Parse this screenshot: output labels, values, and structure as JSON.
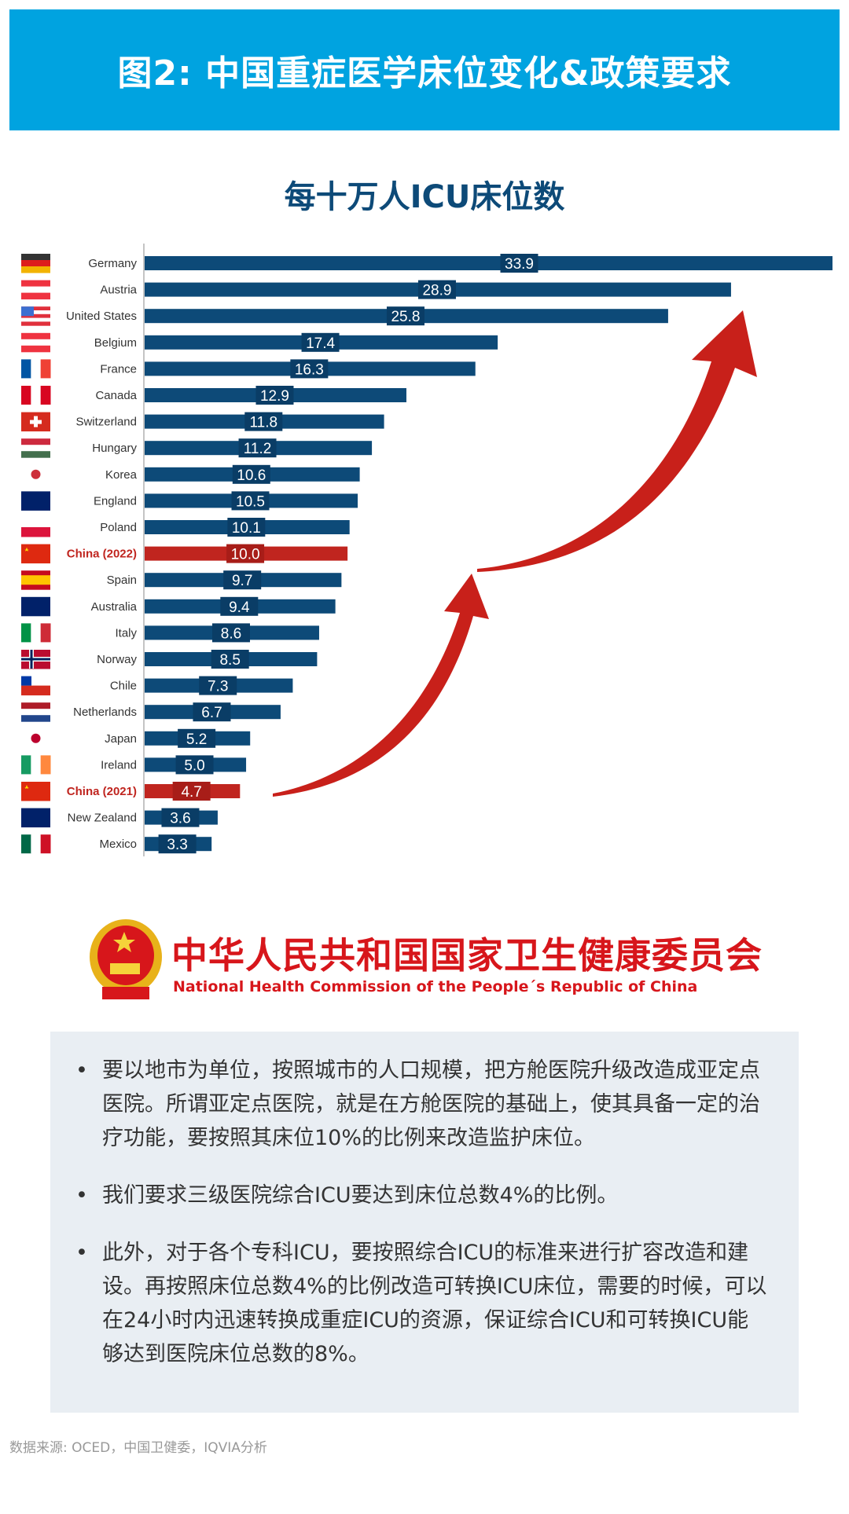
{
  "banner": {
    "title": "图2: 中国重症医学床位变化&政策要求"
  },
  "chart_data": {
    "type": "bar",
    "orientation": "horizontal",
    "title": "每十万人ICU床位数",
    "categories": [
      "Germany",
      "Austria",
      "United States",
      "Belgium",
      "France",
      "Canada",
      "Switzerland",
      "Hungary",
      "Korea",
      "England",
      "Poland",
      "China (2022)",
      "Spain",
      "Australia",
      "Italy",
      "Norway",
      "Chile",
      "Netherlands",
      "Japan",
      "Ireland",
      "China (2021)",
      "New Zealand",
      "Mexico"
    ],
    "values": [
      33.9,
      28.9,
      25.8,
      17.4,
      16.3,
      12.9,
      11.8,
      11.2,
      10.6,
      10.5,
      10.1,
      10.0,
      9.7,
      9.4,
      8.6,
      8.5,
      7.3,
      6.7,
      5.2,
      5.0,
      4.7,
      3.6,
      3.3
    ],
    "value_labels": [
      "33.9",
      "28.9",
      "25.8",
      "17.4",
      "16.3",
      "12.9",
      "11.8",
      "11.2",
      "10.6",
      "10.5",
      "10.1",
      "10.0",
      "9.7",
      "9.4",
      "8.6",
      "8.5",
      "7.3",
      "6.7",
      "5.2",
      "5.0",
      "4.7",
      "3.6",
      "3.3"
    ],
    "flags": [
      "flag-germany-icon",
      "flag-austria-icon",
      "flag-usa-icon",
      "flag-belgium-icon",
      "flag-france-icon",
      "flag-canada-icon",
      "flag-switzerland-icon",
      "flag-hungary-icon",
      "flag-korea-icon",
      "flag-uk-icon",
      "flag-poland-icon",
      "flag-china-icon",
      "flag-spain-icon",
      "flag-australia-icon",
      "flag-italy-icon",
      "flag-norway-icon",
      "flag-chile-icon",
      "flag-netherlands-icon",
      "flag-japan-icon",
      "flag-ireland-icon",
      "flag-china-icon",
      "flag-new-zealand-icon",
      "flag-mexico-icon"
    ],
    "highlight": [
      "China (2022)",
      "China (2021)"
    ],
    "xlim": [
      0,
      33.9
    ],
    "grid": false,
    "colors": {
      "bar": "#0d4a78",
      "highlight": "#c0251f",
      "arrow": "#c8201a"
    }
  },
  "logo": {
    "cn": "中华人民共和国国家卫生健康委员会",
    "en": "National Health Commission of the People´s Republic of China"
  },
  "policy": {
    "bullets": [
      "要以地市为单位，按照城市的人口规模，把方舱医院升级改造成亚定点医院。所谓亚定点医院，就是在方舱医院的基础上，使其具备一定的治疗功能，要按照其床位10%的比例来改造监护床位。",
      "我们要求三级医院综合ICU要达到床位总数4%的比例。",
      "此外，对于各个专科ICU，要按照综合ICU的标准来进行扩容改造和建设。再按照床位总数4%的比例改造可转换ICU床位，需要的时候，可以在24小时内迅速转换成重症ICU的资源，保证综合ICU和可转换ICU能够达到医院床位总数的8%。"
    ]
  },
  "source": "数据来源: OCED，中国卫健委，IQVIA分析"
}
